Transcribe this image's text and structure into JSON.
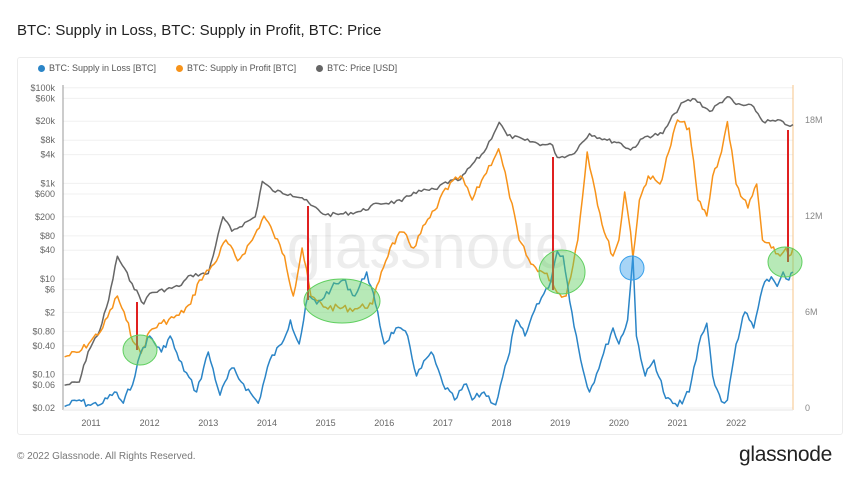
{
  "title": "BTC: Supply in Loss, BTC: Supply in Profit, BTC: Price",
  "footer": {
    "copyright": "© 2022 Glassnode. All Rights Reserved.",
    "logo": "glassnode"
  },
  "watermark": "glassnode",
  "chart_data": {
    "type": "line",
    "title": "BTC: Supply in Loss, BTC: Supply in Profit, BTC: Price",
    "grid": true,
    "legend_placement": "top-left",
    "x_axis": {
      "type": "date",
      "range": [
        2010.55,
        2022.97
      ],
      "tick_labels": [
        "2011",
        "2012",
        "2013",
        "2014",
        "2015",
        "2016",
        "2017",
        "2018",
        "2019",
        "2020",
        "2021",
        "2022"
      ]
    },
    "y_left": {
      "scale": "log",
      "range": [
        0.02,
        100000
      ],
      "tick_labels": [
        "$100k",
        "$60k",
        "$20k",
        "$8k",
        "$4k",
        "$1k",
        "$600",
        "$200",
        "$80",
        "$40",
        "$10",
        "$6",
        "$2",
        "$0.80",
        "$0.40",
        "$0.10",
        "$0.06",
        "$0.02"
      ],
      "tick_values": [
        100000,
        60000,
        20000,
        8000,
        4000,
        1000,
        600,
        200,
        80,
        40,
        10,
        6,
        2,
        0.8,
        0.4,
        0.1,
        0.06,
        0.02
      ]
    },
    "y_right": {
      "scale": "linear",
      "range": [
        0,
        19000000
      ],
      "tick_labels": [
        "18M",
        "12M",
        "6M",
        "0"
      ],
      "tick_values": [
        18000000,
        12000000,
        6000000,
        0
      ]
    },
    "series": [
      {
        "name": "BTC: Supply in Loss [BTC]",
        "axis": "right",
        "color": "#2b85c7",
        "unit": "BTC (millions)",
        "points": [
          [
            2010.55,
            0.1
          ],
          [
            2010.8,
            0.5
          ],
          [
            2010.95,
            0.2
          ],
          [
            2011.2,
            0.3
          ],
          [
            2011.4,
            1.0
          ],
          [
            2011.55,
            0.3
          ],
          [
            2011.75,
            2.0
          ],
          [
            2011.85,
            3.5
          ],
          [
            2012.0,
            4.5
          ],
          [
            2012.2,
            3.5
          ],
          [
            2012.35,
            4.5
          ],
          [
            2012.5,
            3.0
          ],
          [
            2012.8,
            1.0
          ],
          [
            2013.0,
            3.5
          ],
          [
            2013.2,
            0.8
          ],
          [
            2013.4,
            2.5
          ],
          [
            2013.6,
            1.5
          ],
          [
            2013.85,
            0.3
          ],
          [
            2014.05,
            3.0
          ],
          [
            2014.25,
            4.0
          ],
          [
            2014.4,
            5.5
          ],
          [
            2014.55,
            4.0
          ],
          [
            2014.7,
            7.0
          ],
          [
            2014.85,
            6.5
          ],
          [
            2015.1,
            7.5
          ],
          [
            2015.3,
            8.0
          ],
          [
            2015.5,
            7.0
          ],
          [
            2015.7,
            8.5
          ],
          [
            2015.85,
            6.5
          ],
          [
            2016.0,
            4.0
          ],
          [
            2016.2,
            5.0
          ],
          [
            2016.4,
            4.5
          ],
          [
            2016.55,
            2.0
          ],
          [
            2016.8,
            3.5
          ],
          [
            2017.0,
            1.5
          ],
          [
            2017.2,
            0.5
          ],
          [
            2017.4,
            1.5
          ],
          [
            2017.5,
            0.5
          ],
          [
            2017.7,
            1.0
          ],
          [
            2017.9,
            0.2
          ],
          [
            2018.1,
            3.0
          ],
          [
            2018.25,
            5.5
          ],
          [
            2018.4,
            4.5
          ],
          [
            2018.6,
            6.5
          ],
          [
            2018.8,
            7.5
          ],
          [
            2018.95,
            9.8
          ],
          [
            2019.05,
            9.5
          ],
          [
            2019.2,
            6.0
          ],
          [
            2019.35,
            3.0
          ],
          [
            2019.5,
            1.0
          ],
          [
            2019.7,
            3.0
          ],
          [
            2019.9,
            5.0
          ],
          [
            2020.0,
            4.0
          ],
          [
            2020.15,
            5.5
          ],
          [
            2020.24,
            9.5
          ],
          [
            2020.3,
            4.5
          ],
          [
            2020.45,
            2.0
          ],
          [
            2020.6,
            3.0
          ],
          [
            2020.8,
            0.6
          ],
          [
            2021.0,
            0.1
          ],
          [
            2021.2,
            1.0
          ],
          [
            2021.4,
            4.5
          ],
          [
            2021.5,
            5.3
          ],
          [
            2021.6,
            2.0
          ],
          [
            2021.75,
            0.4
          ],
          [
            2021.85,
            0.5
          ],
          [
            2022.0,
            4.0
          ],
          [
            2022.15,
            6.0
          ],
          [
            2022.3,
            5.0
          ],
          [
            2022.45,
            7.5
          ],
          [
            2022.6,
            8.2
          ],
          [
            2022.7,
            7.6
          ],
          [
            2022.8,
            8.5
          ],
          [
            2022.9,
            8.0
          ],
          [
            2022.97,
            8.5
          ]
        ]
      },
      {
        "name": "BTC: Supply in Profit [BTC]",
        "axis": "right",
        "color": "#f7931a",
        "unit": "BTC (millions)",
        "points": [
          [
            2010.55,
            3.2
          ],
          [
            2010.8,
            3.5
          ],
          [
            2011.0,
            4.2
          ],
          [
            2011.2,
            5.0
          ],
          [
            2011.45,
            7.0
          ],
          [
            2011.6,
            5.5
          ],
          [
            2011.75,
            4.0
          ],
          [
            2011.85,
            3.4
          ],
          [
            2012.0,
            4.8
          ],
          [
            2012.2,
            5.3
          ],
          [
            2012.5,
            5.8
          ],
          [
            2012.7,
            6.5
          ],
          [
            2012.85,
            8.0
          ],
          [
            2013.1,
            9.0
          ],
          [
            2013.3,
            10.5
          ],
          [
            2013.5,
            9.2
          ],
          [
            2013.75,
            10.5
          ],
          [
            2013.95,
            12.0
          ],
          [
            2014.1,
            11.0
          ],
          [
            2014.3,
            9.5
          ],
          [
            2014.45,
            7.0
          ],
          [
            2014.6,
            10.0
          ],
          [
            2014.75,
            7.0
          ],
          [
            2014.85,
            6.7
          ],
          [
            2015.0,
            6.3
          ],
          [
            2015.5,
            6.2
          ],
          [
            2015.8,
            6.5
          ],
          [
            2015.95,
            8.5
          ],
          [
            2016.1,
            10.0
          ],
          [
            2016.3,
            11.0
          ],
          [
            2016.5,
            10.0
          ],
          [
            2016.7,
            11.5
          ],
          [
            2016.9,
            12.5
          ],
          [
            2017.0,
            13.5
          ],
          [
            2017.3,
            14.5
          ],
          [
            2017.5,
            13.0
          ],
          [
            2017.7,
            14.5
          ],
          [
            2017.95,
            16.2
          ],
          [
            2018.1,
            14.0
          ],
          [
            2018.3,
            10.5
          ],
          [
            2018.5,
            9.0
          ],
          [
            2018.7,
            8.5
          ],
          [
            2018.85,
            8.0
          ],
          [
            2018.95,
            7.2
          ],
          [
            2019.1,
            7.0
          ],
          [
            2019.3,
            10.5
          ],
          [
            2019.46,
            16.0
          ],
          [
            2019.6,
            13.5
          ],
          [
            2019.75,
            11.0
          ],
          [
            2019.9,
            9.5
          ],
          [
            2020.0,
            10.5
          ],
          [
            2020.1,
            13.5
          ],
          [
            2020.2,
            11.0
          ],
          [
            2020.24,
            9.4
          ],
          [
            2020.35,
            13.0
          ],
          [
            2020.5,
            14.5
          ],
          [
            2020.7,
            14.0
          ],
          [
            2020.85,
            16.0
          ],
          [
            2021.0,
            18.0
          ],
          [
            2021.2,
            17.5
          ],
          [
            2021.35,
            13.0
          ],
          [
            2021.5,
            12.0
          ],
          [
            2021.6,
            14.5
          ],
          [
            2021.75,
            16.0
          ],
          [
            2021.85,
            17.9
          ],
          [
            2022.0,
            14.0
          ],
          [
            2022.2,
            12.5
          ],
          [
            2022.35,
            14.0
          ],
          [
            2022.45,
            10.5
          ],
          [
            2022.6,
            10.0
          ],
          [
            2022.75,
            9.5
          ],
          [
            2022.85,
            10.0
          ],
          [
            2022.9,
            9.5
          ],
          [
            2022.97,
            10.0
          ]
        ]
      },
      {
        "name": "BTC: Price [USD]",
        "axis": "left",
        "color": "#666666",
        "unit": "USD",
        "points": [
          [
            2010.55,
            0.06
          ],
          [
            2010.8,
            0.07
          ],
          [
            2010.95,
            0.3
          ],
          [
            2011.15,
            0.85
          ],
          [
            2011.3,
            3.6
          ],
          [
            2011.45,
            30
          ],
          [
            2011.7,
            8
          ],
          [
            2011.9,
            3
          ],
          [
            2012.0,
            5
          ],
          [
            2012.5,
            7
          ],
          [
            2012.7,
            12
          ],
          [
            2013.0,
            13
          ],
          [
            2013.25,
            200
          ],
          [
            2013.4,
            100
          ],
          [
            2013.8,
            200
          ],
          [
            2013.92,
            1100
          ],
          [
            2014.1,
            700
          ],
          [
            2014.4,
            600
          ],
          [
            2014.6,
            500
          ],
          [
            2014.75,
            350
          ],
          [
            2015.0,
            220
          ],
          [
            2015.3,
            230
          ],
          [
            2015.6,
            260
          ],
          [
            2015.9,
            380
          ],
          [
            2016.3,
            420
          ],
          [
            2016.5,
            650
          ],
          [
            2016.9,
            750
          ],
          [
            2017.0,
            1000
          ],
          [
            2017.3,
            1200
          ],
          [
            2017.5,
            2500
          ],
          [
            2017.7,
            4500
          ],
          [
            2017.96,
            19000
          ],
          [
            2018.1,
            10000
          ],
          [
            2018.4,
            8000
          ],
          [
            2018.7,
            6500
          ],
          [
            2018.87,
            6300
          ],
          [
            2018.95,
            3500
          ],
          [
            2019.2,
            4000
          ],
          [
            2019.5,
            11000
          ],
          [
            2019.8,
            8000
          ],
          [
            2020.0,
            7200
          ],
          [
            2020.2,
            5000
          ],
          [
            2020.45,
            9500
          ],
          [
            2020.75,
            11000
          ],
          [
            2020.95,
            29000
          ],
          [
            2021.1,
            50000
          ],
          [
            2021.3,
            58000
          ],
          [
            2021.55,
            32000
          ],
          [
            2021.85,
            65000
          ],
          [
            2022.0,
            45000
          ],
          [
            2022.3,
            40000
          ],
          [
            2022.45,
            20000
          ],
          [
            2022.8,
            19500
          ],
          [
            2022.87,
            16500
          ],
          [
            2022.97,
            17000
          ]
        ]
      }
    ]
  }
}
